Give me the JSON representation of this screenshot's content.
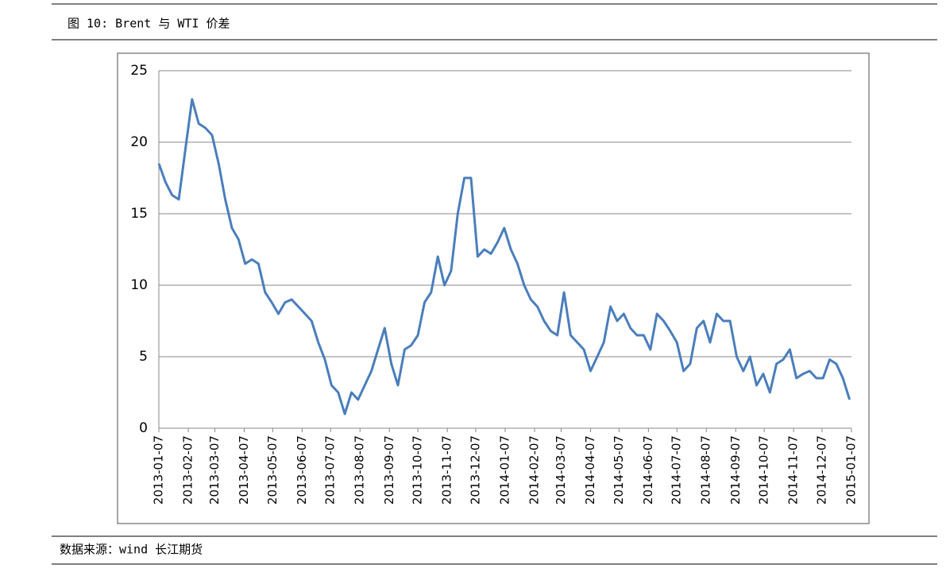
{
  "title": "图 10: Brent 与 WTI 价差",
  "source": "数据来源：wind  长江期货",
  "chart_data": {
    "type": "line",
    "x": [
      "2013-01-07",
      "2013-01-14",
      "2013-01-21",
      "2013-01-28",
      "2013-02-04",
      "2013-02-11",
      "2013-02-18",
      "2013-02-25",
      "2013-03-04",
      "2013-03-11",
      "2013-03-18",
      "2013-03-25",
      "2013-04-01",
      "2013-04-08",
      "2013-04-15",
      "2013-04-22",
      "2013-04-29",
      "2013-05-06",
      "2013-05-13",
      "2013-05-20",
      "2013-05-27",
      "2013-06-03",
      "2013-06-10",
      "2013-06-17",
      "2013-06-24",
      "2013-07-01",
      "2013-07-08",
      "2013-07-15",
      "2013-07-22",
      "2013-07-29",
      "2013-08-05",
      "2013-08-12",
      "2013-08-19",
      "2013-08-26",
      "2013-09-02",
      "2013-09-09",
      "2013-09-16",
      "2013-09-23",
      "2013-09-30",
      "2013-10-07",
      "2013-10-14",
      "2013-10-21",
      "2013-10-28",
      "2013-11-04",
      "2013-11-11",
      "2013-11-18",
      "2013-11-25",
      "2013-12-02",
      "2013-12-09",
      "2013-12-16",
      "2013-12-23",
      "2013-12-30",
      "2014-01-06",
      "2014-01-13",
      "2014-01-20",
      "2014-01-27",
      "2014-02-03",
      "2014-02-10",
      "2014-02-17",
      "2014-02-24",
      "2014-03-03",
      "2014-03-10",
      "2014-03-17",
      "2014-03-24",
      "2014-03-31",
      "2014-04-07",
      "2014-04-14",
      "2014-04-21",
      "2014-04-28",
      "2014-05-05",
      "2014-05-12",
      "2014-05-19",
      "2014-05-26",
      "2014-06-02",
      "2014-06-09",
      "2014-06-16",
      "2014-06-23",
      "2014-06-30",
      "2014-07-07",
      "2014-07-14",
      "2014-07-21",
      "2014-07-28",
      "2014-08-04",
      "2014-08-11",
      "2014-08-18",
      "2014-08-25",
      "2014-09-01",
      "2014-09-08",
      "2014-09-15",
      "2014-09-22",
      "2014-09-29",
      "2014-10-06",
      "2014-10-13",
      "2014-10-20",
      "2014-10-27",
      "2014-11-03",
      "2014-11-10",
      "2014-11-17",
      "2014-11-24",
      "2014-12-01",
      "2014-12-08",
      "2014-12-15",
      "2014-12-22",
      "2014-12-29",
      "2015-01-05"
    ],
    "series": [
      {
        "color": "#4a7ebb",
        "values": [
          18.5,
          17.2,
          16.3,
          16.0,
          19.5,
          23.0,
          21.3,
          21.0,
          20.5,
          18.5,
          16.0,
          14.0,
          13.2,
          11.5,
          11.8,
          11.5,
          9.5,
          8.8,
          8.0,
          8.8,
          9.0,
          8.5,
          8.0,
          7.5,
          6.0,
          4.8,
          3.0,
          2.5,
          1.0,
          2.5,
          2.0,
          3.0,
          4.0,
          5.5,
          7.0,
          4.5,
          3.0,
          5.5,
          5.8,
          6.5,
          8.8,
          9.5,
          12.0,
          10.0,
          11.0,
          15.0,
          17.5,
          17.5,
          12.0,
          12.5,
          12.2,
          13.0,
          14.0,
          12.5,
          11.5,
          10.0,
          9.0,
          8.5,
          7.5,
          6.8,
          6.5,
          9.5,
          6.5,
          6.0,
          5.5,
          4.0,
          5.0,
          6.0,
          8.5,
          7.5,
          8.0,
          7.0,
          6.5,
          6.5,
          5.5,
          8.0,
          7.5,
          6.8,
          6.0,
          4.0,
          4.5,
          7.0,
          7.5,
          6.0,
          8.0,
          7.5,
          7.5,
          5.0,
          4.0,
          5.0,
          3.0,
          3.8,
          2.5,
          4.5,
          4.8,
          5.5,
          3.5,
          3.8,
          4.0,
          3.5,
          3.5,
          4.8,
          4.5,
          3.5,
          2.0
        ]
      }
    ],
    "xlim": [
      "2013-01-07",
      "2015-01-07"
    ],
    "xticks": [
      "2013-01-07",
      "2013-02-07",
      "2013-03-07",
      "2013-04-07",
      "2013-05-07",
      "2013-06-07",
      "2013-07-07",
      "2013-08-07",
      "2013-09-07",
      "2013-10-07",
      "2013-11-07",
      "2013-12-07",
      "2014-01-07",
      "2014-02-07",
      "2014-03-07",
      "2014-04-07",
      "2014-05-07",
      "2014-06-07",
      "2014-07-07",
      "2014-08-07",
      "2014-09-07",
      "2014-10-07",
      "2014-11-07",
      "2014-12-07",
      "2015-01-07"
    ],
    "ylim": [
      0,
      25
    ],
    "yticks": [
      0,
      5,
      10,
      15,
      20,
      25
    ],
    "grid": true
  }
}
